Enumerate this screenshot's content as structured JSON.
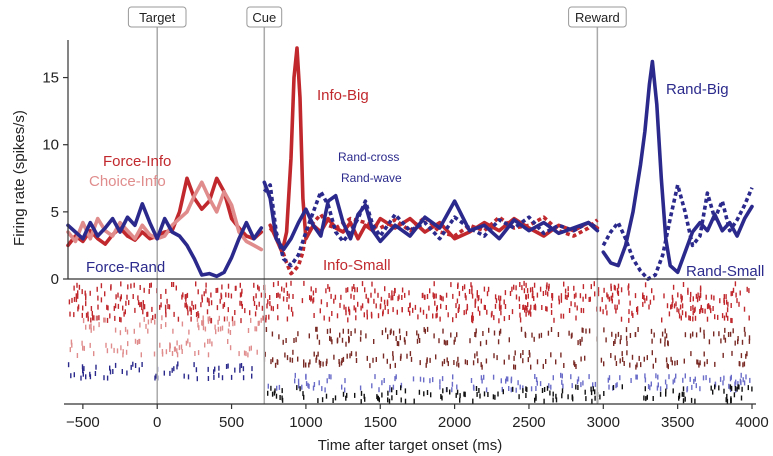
{
  "chart_data": {
    "type": "line",
    "xlabel": "Time after target onset (ms)",
    "ylabel": "Firing rate (spikes/s)",
    "xlim": [
      -600,
      4000
    ],
    "ylim": [
      0,
      17.5
    ],
    "x_ticks": [
      -500,
      0,
      500,
      1000,
      1500,
      2000,
      2500,
      3000,
      3500,
      4000
    ],
    "x_tick_labels": [
      "−500",
      "0",
      "500",
      "1000",
      "1500",
      "2000",
      "2500",
      "3000",
      "3500",
      "4000"
    ],
    "y_ticks": [
      0,
      5,
      10,
      15
    ],
    "y_tick_labels": [
      "0",
      "5",
      "10",
      "15"
    ],
    "events": [
      {
        "label": "Target",
        "x": 0
      },
      {
        "label": "Cue",
        "x": 720
      },
      {
        "label": "Reward",
        "x": 2960
      }
    ],
    "colors": {
      "info": "#c0282d",
      "choice_info": "#e08c8c",
      "rand": "#2b2a8c",
      "rand_light": "#6a6cc8",
      "info_dark": "#7a2a25",
      "black": "#111111",
      "event_line": "#aaaaaa",
      "axis": "#333333"
    },
    "series": [
      {
        "name": "Force-Info",
        "color": "#c0282d",
        "style": "solid",
        "x": [
          -600,
          -550,
          -500,
          -450,
          -400,
          -350,
          -300,
          -250,
          -200,
          -150,
          -100,
          -50,
          0,
          50,
          100,
          150,
          200,
          250,
          300,
          350,
          400,
          450,
          500,
          550,
          600,
          650,
          700
        ],
        "y": [
          2.5,
          3.2,
          2.8,
          3.6,
          3.0,
          2.6,
          3.3,
          3.8,
          3.2,
          2.9,
          3.5,
          3.0,
          3.2,
          3.5,
          3.6,
          5.0,
          7.5,
          6.0,
          5.2,
          5.8,
          7.5,
          6.5,
          4.5,
          3.8,
          3.2,
          3.0,
          3.5
        ]
      },
      {
        "name": "Choice-Info",
        "color": "#e08c8c",
        "style": "solid",
        "x": [
          -600,
          -550,
          -500,
          -450,
          -400,
          -350,
          -300,
          -250,
          -200,
          -150,
          -100,
          -50,
          0,
          50,
          100,
          150,
          200,
          250,
          300,
          350,
          400,
          450,
          500,
          550,
          600,
          650,
          700
        ],
        "y": [
          3.5,
          2.8,
          4.2,
          3.0,
          4.5,
          3.6,
          3.2,
          4.2,
          3.6,
          3.0,
          4.0,
          3.3,
          3.0,
          3.2,
          4.0,
          4.5,
          5.0,
          6.2,
          7.2,
          6.0,
          5.0,
          6.5,
          5.5,
          3.5,
          2.8,
          2.5,
          2.2
        ]
      },
      {
        "name": "Force-Rand",
        "color": "#2b2a8c",
        "style": "solid",
        "x": [
          -600,
          -550,
          -500,
          -450,
          -400,
          -350,
          -300,
          -250,
          -200,
          -150,
          -100,
          -50,
          0,
          50,
          100,
          150,
          200,
          250,
          300,
          350,
          400,
          450,
          500,
          550,
          600,
          650,
          700
        ],
        "y": [
          4.0,
          3.5,
          3.0,
          4.2,
          3.2,
          3.8,
          4.5,
          3.5,
          4.6,
          4.0,
          5.6,
          4.2,
          3.0,
          4.5,
          3.5,
          3.2,
          2.5,
          1.5,
          0.3,
          0.4,
          0.2,
          0.5,
          1.6,
          3.0,
          4.2,
          3.0,
          3.8
        ]
      },
      {
        "name": "Info-Big",
        "color": "#c0282d",
        "style": "solid",
        "x": [
          760,
          800,
          840,
          870,
          900,
          920,
          940,
          960,
          980,
          1000,
          1050,
          1100,
          1150,
          1200,
          1250,
          1300,
          1350,
          1400,
          1450,
          1500,
          1600,
          1700,
          1800,
          1900,
          2000,
          2100,
          2200,
          2300,
          2400,
          2500,
          2600,
          2700,
          2800,
          2900,
          2960
        ],
        "y": [
          4.0,
          3.0,
          2.0,
          3.5,
          9.0,
          15.0,
          17.2,
          13.5,
          6.0,
          3.0,
          4.0,
          3.5,
          4.5,
          3.8,
          3.5,
          4.2,
          3.0,
          4.0,
          3.6,
          4.5,
          3.8,
          4.5,
          3.5,
          4.2,
          3.0,
          3.5,
          4.2,
          3.6,
          4.5,
          3.8,
          3.2,
          4.0,
          3.6,
          4.2,
          3.8
        ]
      },
      {
        "name": "Info-Small",
        "color": "#c0282d",
        "style": "dotted",
        "x": [
          760,
          800,
          840,
          870,
          900,
          920,
          950,
          980,
          1000,
          1050,
          1100,
          1150,
          1200,
          1300,
          1400,
          1500,
          1600,
          1700,
          1800,
          1900,
          2000,
          2100,
          2200,
          2300,
          2400,
          2500,
          2600,
          2700,
          2800,
          2900,
          2960
        ],
        "y": [
          3.8,
          3.2,
          2.2,
          1.2,
          0.4,
          0.6,
          1.0,
          2.0,
          3.5,
          4.2,
          4.8,
          4.0,
          3.8,
          4.5,
          4.2,
          3.8,
          4.4,
          3.6,
          4.6,
          3.5,
          3.2,
          4.0,
          3.6,
          4.6,
          3.8,
          4.0,
          4.6,
          3.6,
          3.2,
          3.8,
          4.4
        ]
      },
      {
        "name": "Rand-Big",
        "color": "#2b2a8c",
        "style": "solid",
        "x": [
          3000,
          3050,
          3100,
          3150,
          3200,
          3250,
          3280,
          3310,
          3330,
          3360,
          3390,
          3420,
          3450,
          3500,
          3550,
          3600,
          3650,
          3700,
          3750,
          3800,
          3850,
          3900,
          3950,
          4000
        ],
        "y": [
          2.0,
          1.2,
          1.0,
          2.5,
          5.0,
          8.5,
          11.0,
          14.5,
          16.2,
          13.0,
          7.5,
          3.0,
          1.0,
          0.5,
          2.0,
          3.5,
          4.2,
          3.6,
          4.8,
          3.6,
          4.2,
          3.2,
          4.5,
          5.4
        ]
      },
      {
        "name": "Rand-Small",
        "color": "#2b2a8c",
        "style": "dotted",
        "x": [
          3000,
          3050,
          3100,
          3150,
          3200,
          3250,
          3300,
          3350,
          3400,
          3450,
          3500,
          3550,
          3600,
          3650,
          3700,
          3750,
          3800,
          3850,
          3900,
          3950,
          4000
        ],
        "y": [
          2.5,
          3.5,
          4.2,
          3.0,
          1.5,
          0.6,
          0.0,
          0.3,
          1.8,
          4.5,
          7.0,
          5.0,
          2.5,
          3.2,
          6.4,
          4.5,
          5.8,
          3.6,
          4.4,
          5.5,
          6.8
        ]
      },
      {
        "name": "Rand-cross",
        "color": "#2b2a8c",
        "style": "dotted",
        "x": [
          720,
          760,
          800,
          850,
          900,
          950,
          1000,
          1050,
          1100,
          1150,
          1200,
          1250,
          1300,
          1350,
          1400,
          1450,
          1500,
          1600,
          1700,
          1800,
          1900,
          2000,
          2100,
          2200,
          2300,
          2400,
          2500,
          2600,
          2700,
          2800,
          2900,
          2960
        ],
        "y": [
          6.5,
          7.0,
          3.5,
          1.5,
          1.0,
          1.8,
          3.5,
          5.0,
          6.5,
          5.5,
          3.5,
          2.8,
          3.5,
          4.5,
          5.8,
          4.0,
          3.2,
          4.8,
          3.6,
          4.2,
          3.0,
          4.6,
          3.8,
          3.2,
          4.4,
          3.8,
          4.6,
          3.4,
          4.0,
          3.6,
          4.2,
          3.8
        ]
      },
      {
        "name": "Rand-wave",
        "color": "#2b2a8c",
        "style": "solid",
        "x": [
          720,
          760,
          800,
          850,
          900,
          950,
          1000,
          1050,
          1100,
          1150,
          1200,
          1250,
          1300,
          1350,
          1400,
          1450,
          1500,
          1600,
          1700,
          1800,
          1900,
          2000,
          2100,
          2200,
          2300,
          2400,
          2500,
          2600,
          2700,
          2800,
          2900,
          2960
        ],
        "y": [
          7.2,
          6.0,
          3.0,
          2.2,
          3.0,
          4.2,
          5.2,
          4.0,
          3.2,
          5.8,
          6.2,
          4.2,
          3.0,
          4.8,
          5.5,
          3.6,
          2.8,
          4.0,
          3.2,
          4.6,
          3.8,
          5.8,
          3.6,
          4.0,
          3.0,
          4.4,
          3.6,
          4.2,
          3.4,
          3.8,
          4.2,
          3.6
        ]
      }
    ],
    "annotations": [
      {
        "text": "Force-Info",
        "color": "#c0282d"
      },
      {
        "text": "Choice-Info",
        "color": "#e08c8c"
      },
      {
        "text": "Force-Rand",
        "color": "#2b2a8c"
      },
      {
        "text": "Info-Big",
        "color": "#c0282d"
      },
      {
        "text": "Info-Small",
        "color": "#c0282d"
      },
      {
        "text": "Rand-cross",
        "color": "#2b2a8c"
      },
      {
        "text": "Rand-wave",
        "color": "#2b2a8c"
      },
      {
        "text": "Rand-Big",
        "color": "#2b2a8c"
      },
      {
        "text": "Rand-Small",
        "color": "#2b2a8c"
      }
    ],
    "raster": {
      "rows": [
        {
          "color": "#c0282d",
          "from": -600,
          "to": 4000
        },
        {
          "color": "#c0282d",
          "from": -600,
          "to": 4000
        },
        {
          "color": "#c0282d",
          "from": -600,
          "to": 4000
        },
        {
          "color": "#e08c8c",
          "from": -600,
          "to": 700
        },
        {
          "color": "#7a2a25",
          "from": 720,
          "to": 4000
        },
        {
          "color": "#e08c8c",
          "from": -600,
          "to": 700
        },
        {
          "color": "#7a2a25",
          "from": 720,
          "to": 4000
        },
        {
          "color": "#2b2a8c",
          "from": -600,
          "to": 700
        },
        {
          "color": "#6a6cc8",
          "from": 720,
          "to": 4000
        },
        {
          "color": "#111111",
          "from": 720,
          "to": 4000
        }
      ]
    }
  }
}
